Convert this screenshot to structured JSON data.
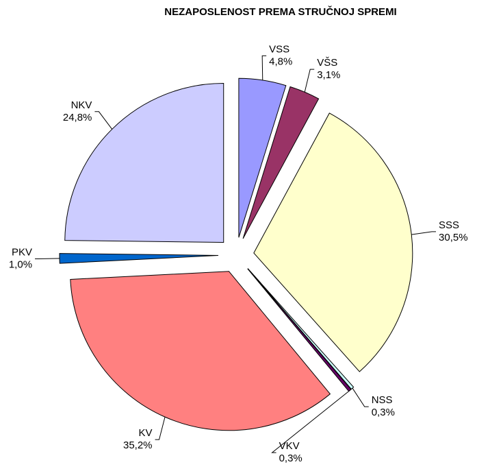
{
  "chart_data": {
    "type": "pie",
    "title": "NEZAPOSLENOST PREMA STRUČNOJ SPREMI",
    "categories": [
      "VSS",
      "VŠS",
      "SSS",
      "NSS",
      "VKV",
      "KV",
      "PKV",
      "NKV"
    ],
    "values": [
      4.8,
      3.1,
      30.5,
      0.3,
      0.3,
      35.2,
      1.0,
      24.8
    ],
    "value_labels": [
      "4,8%",
      "3,1%",
      "30,5%",
      "0,3%",
      "0,3%",
      "35,2%",
      "1,0%",
      "24,8%"
    ],
    "colors": [
      "#9999ff",
      "#993366",
      "#ffffcc",
      "#ccffff",
      "#660066",
      "#ff8080",
      "#0066cc",
      "#ccccff"
    ]
  }
}
